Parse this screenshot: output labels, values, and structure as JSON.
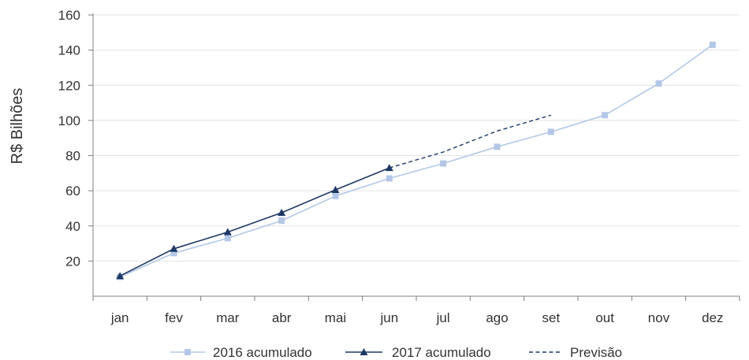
{
  "chart_data": {
    "type": "line",
    "ylabel": "R$ Bilhões",
    "xlabel": "",
    "categories": [
      "jan",
      "fev",
      "mar",
      "abr",
      "mai",
      "jun",
      "jul",
      "ago",
      "set",
      "out",
      "nov",
      "dez"
    ],
    "ylim": [
      0,
      160
    ],
    "yticks": [
      20,
      40,
      60,
      80,
      100,
      120,
      140,
      160
    ],
    "grid": true,
    "legend_position": "bottom",
    "series": [
      {
        "name": "2016 acumulado",
        "color": "#b4c7e7",
        "marker": "square",
        "style": "solid",
        "values": [
          11,
          24.5,
          33,
          43,
          57,
          67,
          75.5,
          85,
          93.5,
          103,
          121,
          143
        ]
      },
      {
        "name": "2017 acumulado",
        "color": "#1f3864",
        "marker": "triangle",
        "style": "solid",
        "values": [
          11.5,
          27,
          36.5,
          47.5,
          60.5,
          73,
          null,
          null,
          null,
          null,
          null,
          null
        ]
      },
      {
        "name": "Previsão",
        "color": "#1f3864",
        "marker": "none",
        "style": "dashed",
        "values": [
          null,
          null,
          null,
          null,
          null,
          73,
          82,
          94,
          103,
          null,
          null,
          null
        ]
      }
    ]
  }
}
